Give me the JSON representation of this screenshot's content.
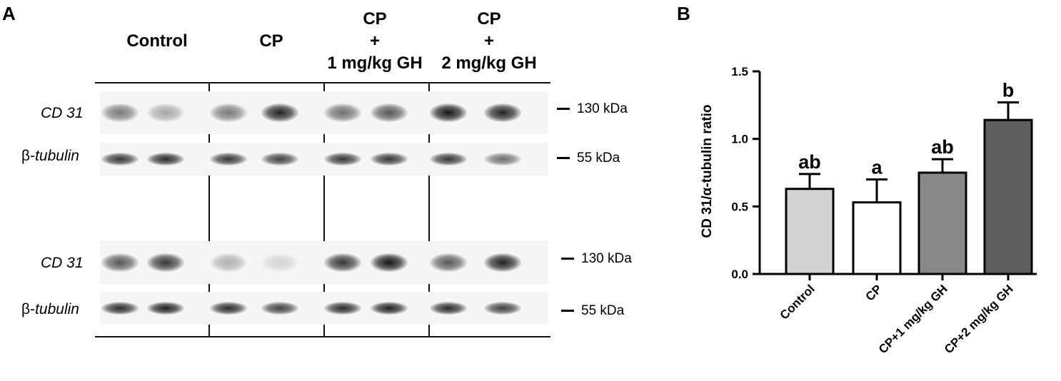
{
  "panel_a": {
    "letter": "A",
    "groups": [
      {
        "lines": [
          "Control"
        ]
      },
      {
        "lines": [
          "CP"
        ]
      },
      {
        "lines": [
          "CP",
          "+",
          "1 mg/kg GH"
        ]
      },
      {
        "lines": [
          "CP",
          "+",
          "2 mg/kg GH"
        ]
      }
    ],
    "rows": [
      {
        "label_prefix": "",
        "label_italic": "CD 31",
        "marker": "130 kDa"
      },
      {
        "label_prefix": "β-",
        "label_italic": "tubulin",
        "marker": "55 kDa"
      },
      {
        "label_prefix": "",
        "label_italic": "CD 31",
        "marker": "130 kDa"
      },
      {
        "label_prefix": "β-",
        "label_italic": "tubulin",
        "marker": "55 kDa"
      }
    ],
    "band_intensity": [
      [
        0.55,
        0.35,
        0.55,
        0.95,
        0.6,
        0.7,
        1.0,
        0.95
      ],
      [
        0.85,
        0.9,
        0.85,
        0.8,
        0.85,
        0.85,
        0.85,
        0.6
      ],
      [
        0.7,
        0.85,
        0.3,
        0.15,
        0.85,
        1.0,
        0.7,
        0.95
      ],
      [
        0.9,
        0.95,
        0.9,
        0.8,
        0.9,
        0.95,
        0.9,
        0.8
      ]
    ]
  },
  "chart_data": {
    "type": "bar",
    "panel_letter": "B",
    "categories": [
      "Control",
      "CP",
      "CP+1 mg/kg GH",
      "CP+2 mg/kg GH"
    ],
    "values": [
      0.63,
      0.53,
      0.75,
      1.14
    ],
    "errors": [
      0.11,
      0.17,
      0.1,
      0.13
    ],
    "significance_letters": [
      "ab",
      "a",
      "ab",
      "b"
    ],
    "bar_colors": [
      "#d3d3d3",
      "#ffffff",
      "#888888",
      "#5e5e5e"
    ],
    "ylabel": "CD 31/α-tubulin ratio",
    "xlabel": "",
    "ylim": [
      0,
      1.5
    ],
    "yticks": [
      "0.0",
      "0.5",
      "1.0",
      "1.5"
    ],
    "grid": false
  }
}
